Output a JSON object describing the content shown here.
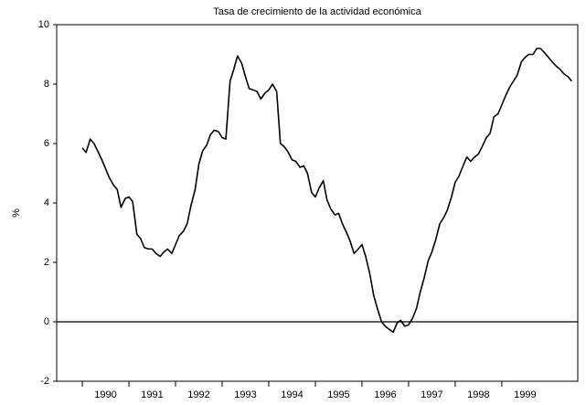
{
  "chart_data": {
    "type": "line",
    "title": "Tasa de crecimiento de la actividad económica",
    "y_label": "%",
    "x": [
      1990,
      1990.08,
      1990.17,
      1990.25,
      1990.33,
      1990.42,
      1990.5,
      1990.58,
      1990.67,
      1990.75,
      1990.83,
      1990.92,
      1991,
      1991.08,
      1991.17,
      1991.25,
      1991.33,
      1991.42,
      1991.5,
      1991.58,
      1991.67,
      1991.75,
      1991.83,
      1991.92,
      1992,
      1992.08,
      1992.17,
      1992.25,
      1992.33,
      1992.42,
      1992.5,
      1992.58,
      1992.67,
      1992.75,
      1992.83,
      1992.92,
      1993,
      1993.08,
      1993.17,
      1993.25,
      1993.33,
      1993.42,
      1993.5,
      1993.58,
      1993.67,
      1993.75,
      1993.83,
      1993.92,
      1994,
      1994.08,
      1994.17,
      1994.25,
      1994.33,
      1994.42,
      1994.5,
      1994.58,
      1994.67,
      1994.75,
      1994.83,
      1994.92,
      1995,
      1995.08,
      1995.17,
      1995.25,
      1995.33,
      1995.42,
      1995.5,
      1995.58,
      1995.67,
      1995.75,
      1995.83,
      1995.92,
      1996,
      1996.08,
      1996.17,
      1996.25,
      1996.33,
      1996.42,
      1996.5,
      1996.58,
      1996.67,
      1996.75,
      1996.83,
      1996.92,
      1997,
      1997.08,
      1997.17,
      1997.25,
      1997.33,
      1997.42,
      1997.5,
      1997.58,
      1997.67,
      1997.75,
      1997.83,
      1997.92,
      1998,
      1998.08,
      1998.17,
      1998.25,
      1998.33,
      1998.42,
      1998.5,
      1998.58,
      1998.67,
      1998.75,
      1998.83,
      1998.92,
      1999,
      1999.08,
      1999.17,
      1999.25,
      1999.33,
      1999.42,
      1999.5,
      1999.58,
      1999.67,
      1999.75,
      1999.83,
      1999.92,
      2000,
      2000.08,
      2000.17,
      2000.25,
      2000.33,
      2000.42,
      2000.5
    ],
    "series": [
      {
        "color": "#000000",
        "values": [
          5.85,
          5.7,
          6.15,
          6.0,
          5.75,
          5.45,
          5.15,
          4.85,
          4.6,
          4.45,
          3.85,
          4.15,
          4.2,
          4.05,
          2.95,
          2.8,
          2.5,
          2.45,
          2.45,
          2.3,
          2.2,
          2.35,
          2.45,
          2.3,
          2.6,
          2.9,
          3.05,
          3.3,
          3.9,
          4.45,
          5.3,
          5.75,
          5.95,
          6.3,
          6.45,
          6.4,
          6.2,
          6.15,
          8.1,
          8.5,
          8.95,
          8.7,
          8.25,
          7.85,
          7.8,
          7.75,
          7.5,
          7.7,
          7.8,
          8.0,
          7.75,
          6.0,
          5.9,
          5.7,
          5.45,
          5.4,
          5.2,
          5.25,
          5.0,
          4.35,
          4.2,
          4.5,
          4.75,
          4.1,
          3.8,
          3.6,
          3.65,
          3.3,
          3.0,
          2.7,
          2.3,
          2.45,
          2.6,
          2.2,
          1.6,
          0.9,
          0.45,
          0.0,
          -0.15,
          -0.25,
          -0.35,
          -0.05,
          0.05,
          -0.15,
          -0.1,
          0.1,
          0.45,
          1.0,
          1.45,
          2.05,
          2.35,
          2.75,
          3.3,
          3.5,
          3.75,
          4.2,
          4.7,
          4.9,
          5.25,
          5.55,
          5.4,
          5.55,
          5.65,
          5.9,
          6.2,
          6.35,
          6.9,
          7.0,
          7.3,
          7.6,
          7.9,
          8.1,
          8.3,
          8.75,
          8.9,
          9.0,
          9.0,
          9.2,
          9.2,
          9.05,
          8.9,
          8.75,
          8.6,
          8.5,
          8.35,
          8.25,
          8.1
        ]
      }
    ],
    "xlim": [
      1989.45,
      2000.63
    ],
    "xticks": [
      1990,
      1991,
      1992,
      1993,
      1994,
      1995,
      1996,
      1997,
      1998,
      1999
    ],
    "ylim": [
      -2,
      10
    ],
    "yticks": [
      -2,
      0,
      2,
      4,
      6,
      8,
      10
    ],
    "zero_line": true
  }
}
